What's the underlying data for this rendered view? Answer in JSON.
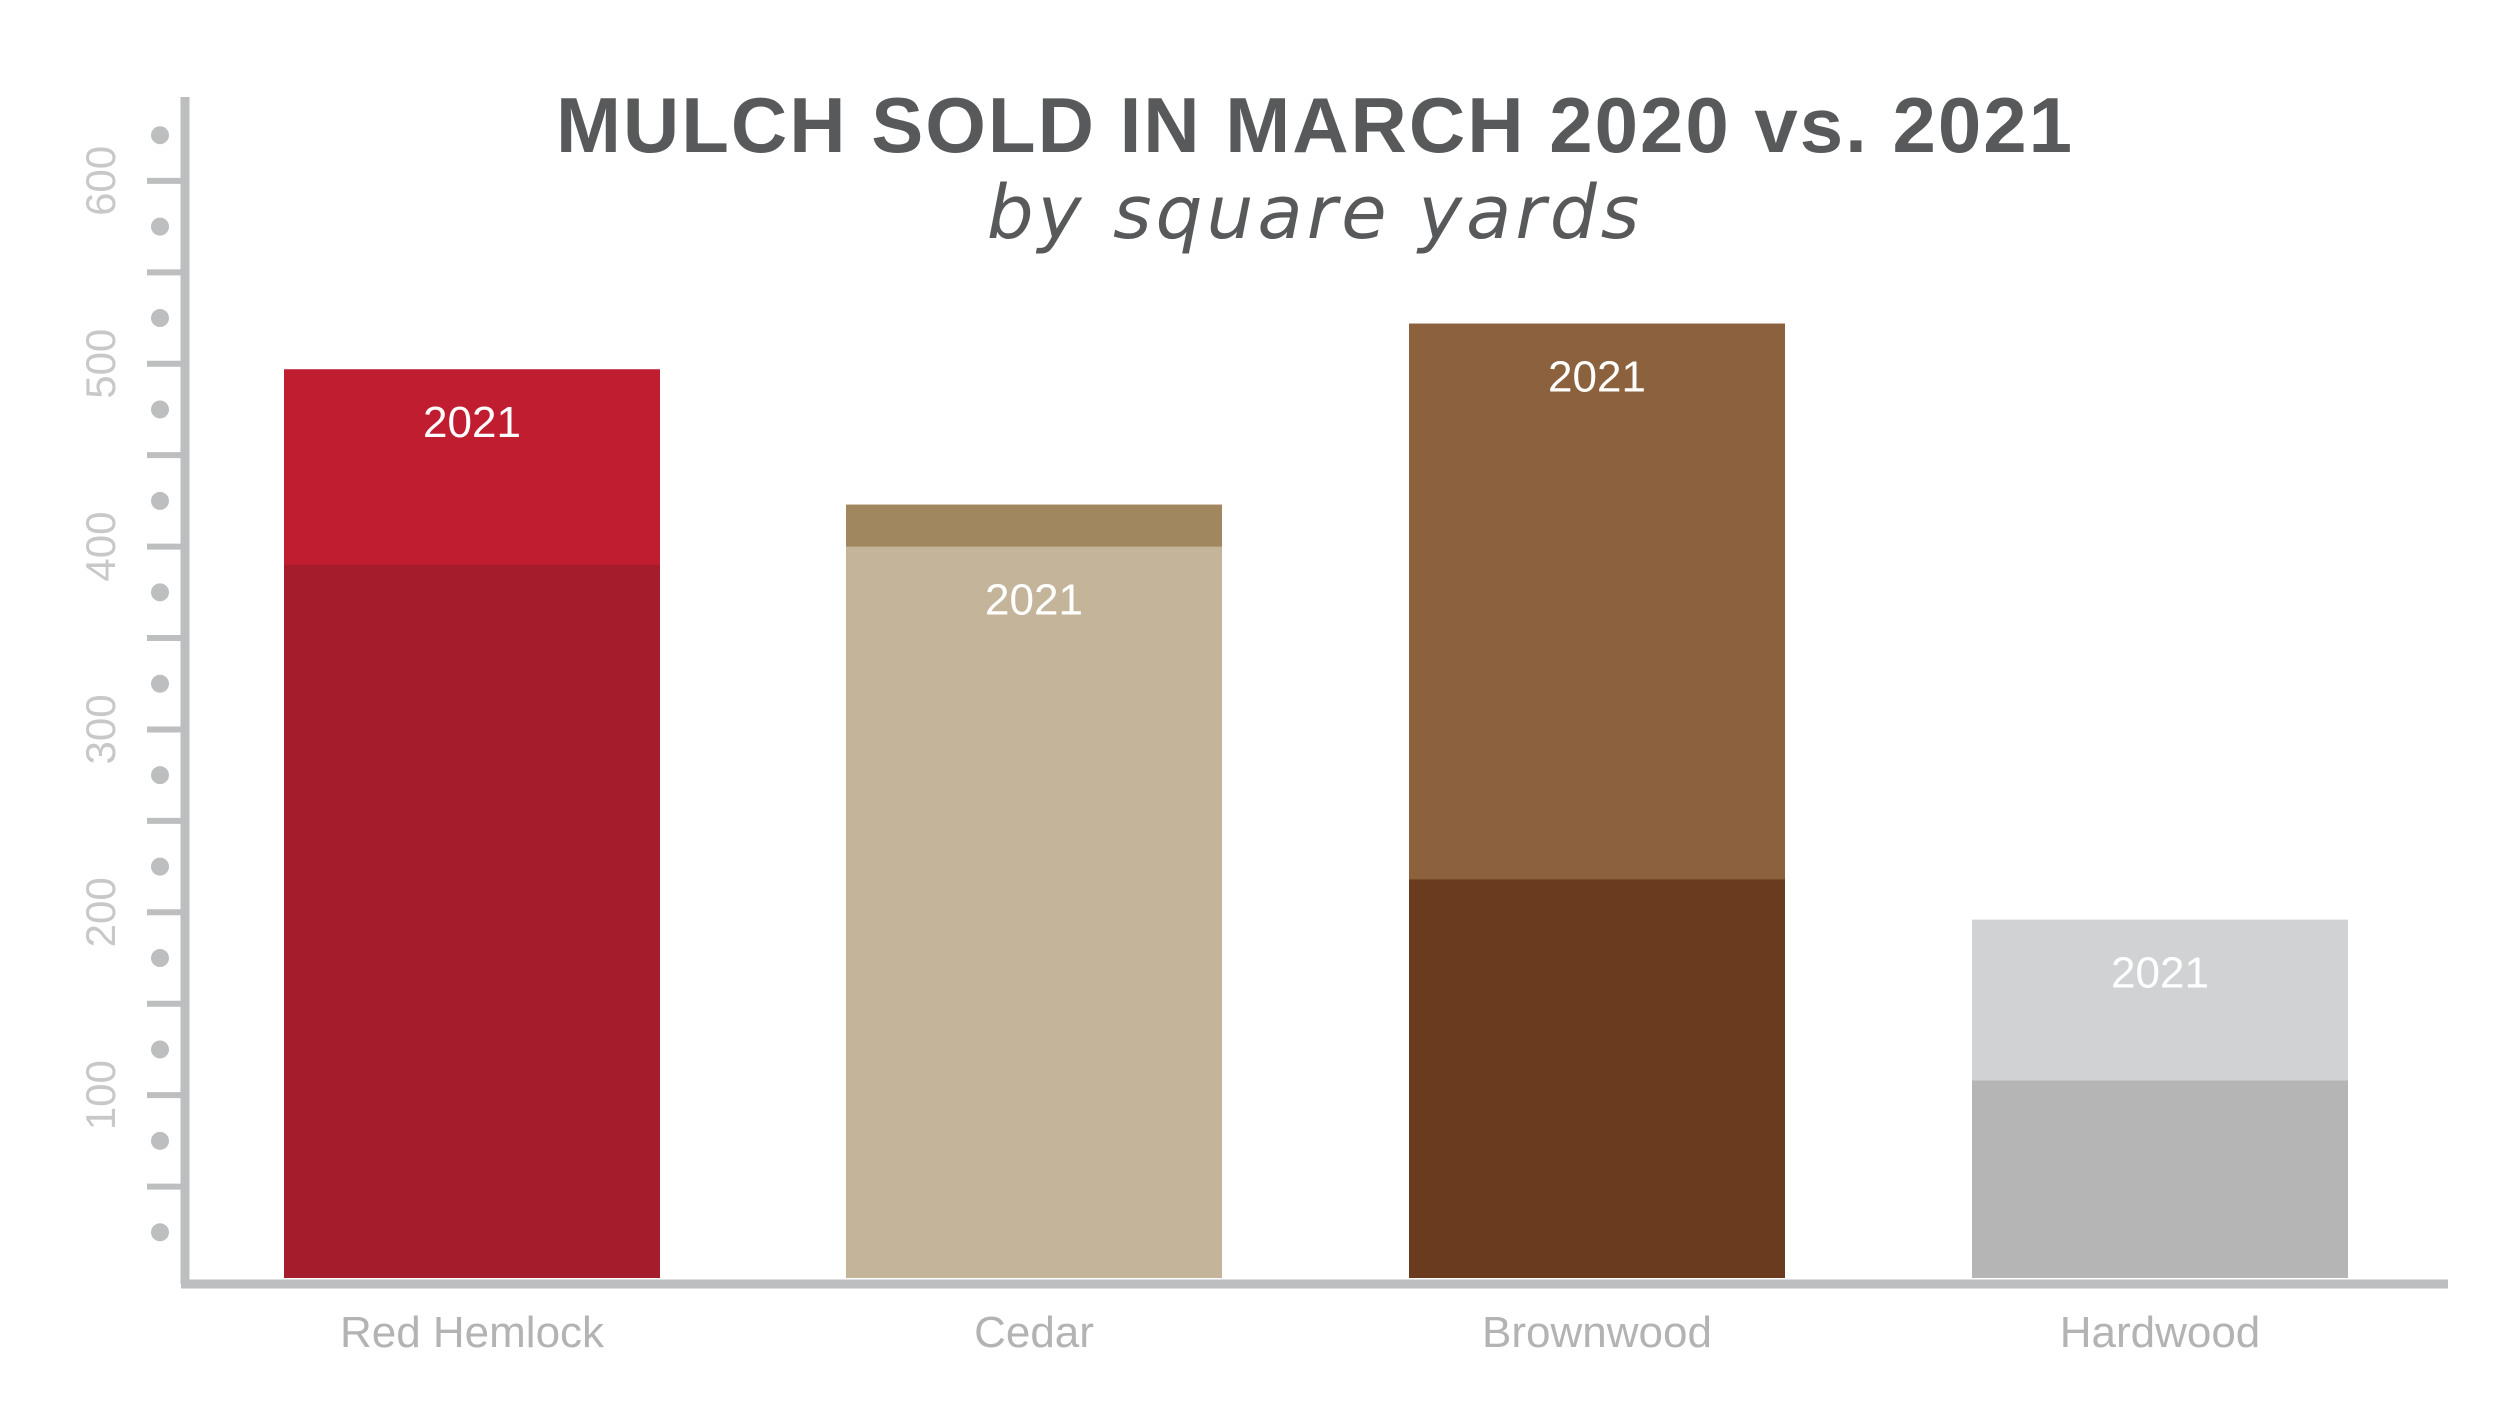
{
  "chart_data": {
    "type": "bar",
    "title": "MULCH SOLD IN MARCH 2020 vs. 2021",
    "subtitle": "by square yards",
    "categories": [
      "Red Hemlock",
      "Cedar",
      "Brownwood",
      "Hardwood"
    ],
    "series": [
      {
        "values": [
          390,
          400,
          218,
          108
        ]
      },
      {
        "values": [
          497,
          423,
          522,
          196
        ]
      }
    ],
    "bar_label": "2021",
    "yticks": [
      100,
      200,
      300,
      400,
      500,
      600
    ],
    "ylim": [
      0,
      640
    ],
    "grid": false,
    "legend": "none",
    "colors": {
      "Red Hemlock": {
        "2020": "#a51c2d",
        "2021": "#c01d30"
      },
      "Cedar": {
        "2020": "#c4b59a",
        "2021": "#a18760"
      },
      "Brownwood": {
        "2020": "#6a3b1f",
        "2021": "#8c613d"
      },
      "Hardwood": {
        "2020": "#b5b5b6",
        "2021": "#d1d2d3"
      }
    },
    "axis_color": "#bcbec0"
  }
}
